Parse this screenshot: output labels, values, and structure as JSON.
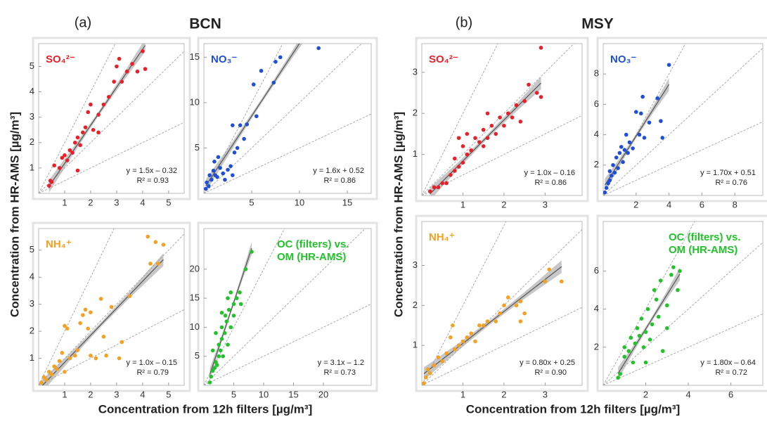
{
  "figure": {
    "groups": [
      {
        "label": "(a)",
        "title": "BCN",
        "y_label": "Concentration from HR-AMS [µg/m³]",
        "x_label": "Concentration  from 12h filters [µg/m³]"
      },
      {
        "label": "(b)",
        "title": "MSY",
        "y_label": "Concentration from HR-AMS [µg/m³]",
        "x_label": "Concentration  from 12h filters [µg/m³]"
      }
    ]
  },
  "chart_data": [
    {
      "type": "scatter",
      "legend": "upper left",
      "xlim": [
        0,
        5.6
      ],
      "ylim": [
        0,
        5.9
      ],
      "xticks": [
        1,
        2,
        3,
        4,
        5
      ],
      "yticks": [
        1,
        2,
        3,
        4,
        5
      ],
      "x": [
        0.4,
        0.45,
        0.5,
        0.6,
        0.8,
        0.9,
        1.0,
        1.1,
        1.2,
        1.3,
        1.4,
        1.5,
        1.6,
        1.7,
        1.8,
        1.9,
        2.0,
        2.1,
        2.3,
        2.5,
        2.7,
        2.9,
        3.0,
        3.1,
        3.2,
        3.4,
        3.6,
        3.8,
        4.0,
        4.1,
        1.5,
        2.3
      ],
      "series": [
        {
          "name": "SO₄²⁻",
          "color": "#e8202a",
          "values": [
            0.3,
            0.5,
            0.45,
            1.1,
            1.0,
            1.4,
            1.5,
            1.3,
            1.7,
            1.6,
            2.0,
            2.2,
            1.9,
            2.4,
            2.6,
            3.2,
            3.5,
            2.5,
            3.1,
            3.5,
            3.8,
            4.4,
            5.0,
            5.3,
            4.4,
            4.8,
            5.1,
            4.8,
            5.6,
            4.9,
            0.9,
            2.4
          ]
        }
      ],
      "fit": {
        "slope": 1.5,
        "intercept": -0.32
      },
      "equation": "y = 1.5x – 0.32",
      "r2": "R² = 0.93"
    },
    {
      "type": "scatter",
      "legend": "upper left",
      "xlim": [
        0,
        17.5
      ],
      "ylim": [
        0,
        16.5
      ],
      "xticks": [
        5,
        10,
        15
      ],
      "yticks": [
        5,
        10,
        15
      ],
      "x": [
        0.2,
        0.3,
        0.5,
        0.6,
        0.8,
        1.0,
        1.1,
        1.2,
        1.4,
        1.5,
        1.7,
        2.0,
        2.2,
        2.5,
        2.8,
        3.0,
        3.2,
        3.5,
        3.0,
        3.8,
        4.2,
        4.5,
        5.5,
        5.2,
        6.0,
        7.5,
        7.3,
        8.0,
        12
      ],
      "series": [
        {
          "name": "NO₃⁻",
          "color": "#1f4fd6",
          "values": [
            0.5,
            1.2,
            0.8,
            2.0,
            1.5,
            2.5,
            3.5,
            2.0,
            1.8,
            4.0,
            2.8,
            2.2,
            1.5,
            2.6,
            3.0,
            2.0,
            4.5,
            5.0,
            7.5,
            7.5,
            6.0,
            7.6,
            8.5,
            12.0,
            13.5,
            14.5,
            12.2,
            15.0,
            16.0
          ]
        }
      ],
      "fit": {
        "slope": 1.6,
        "intercept": 0.52
      },
      "equation": "y = 1.6x + 0.52",
      "r2": "R² = 0.86"
    },
    {
      "type": "scatter",
      "legend": "upper left",
      "xlim": [
        0,
        5.6
      ],
      "ylim": [
        0,
        5.8
      ],
      "xticks": [
        1,
        2,
        3,
        4,
        5
      ],
      "yticks": [
        1,
        2,
        3,
        4,
        5
      ],
      "x": [
        0.1,
        0.2,
        0.3,
        0.4,
        0.5,
        0.6,
        0.7,
        0.8,
        0.9,
        1.0,
        1.1,
        1.0,
        1.2,
        1.4,
        1.5,
        1.6,
        1.7,
        1.8,
        1.9,
        2.0,
        2.0,
        2.2,
        2.4,
        2.5,
        2.6,
        2.8,
        3.1,
        3.2,
        3.5,
        4.2,
        4.3,
        4.5,
        4.6,
        4.8
      ],
      "series": [
        {
          "name": "NH₄⁺",
          "color": "#f4a020",
          "values": [
            0.1,
            0.3,
            0.2,
            0.5,
            0.4,
            0.7,
            0.6,
            0.9,
            1.2,
            2.2,
            2.1,
            0.5,
            1.0,
            1.1,
            1.3,
            2.3,
            2.6,
            2.8,
            2.1,
            2.7,
            1.1,
            1.0,
            3.2,
            1.8,
            1.1,
            2.9,
            1.0,
            1.6,
            3.3,
            5.5,
            4.5,
            5.3,
            4.5,
            5.2
          ]
        }
      ],
      "fit": {
        "slope": 1.0,
        "intercept": -0.15
      },
      "equation": "y = 1.0x – 0.15",
      "r2": "R² = 0.79"
    },
    {
      "type": "scatter",
      "legend": "upper right",
      "xlim": [
        0,
        28
      ],
      "ylim": [
        0,
        27
      ],
      "xticks": [
        5,
        10,
        15,
        20
      ],
      "yticks": [
        5,
        10,
        15,
        20
      ],
      "x": [
        1,
        1.2,
        1.5,
        1.8,
        2,
        2.2,
        2.5,
        2.5,
        2.8,
        3,
        3,
        3.2,
        3.5,
        3.6,
        3.8,
        4,
        4,
        4.2,
        4.5,
        4.5,
        5,
        5,
        5.5,
        6,
        6.2,
        1.5,
        2,
        7,
        8,
        3
      ],
      "series": [
        {
          "name": "OC (filters) vs. OM (HR-AMS)",
          "color": "#22c22a",
          "values": [
            0.5,
            1.5,
            2.5,
            3,
            4,
            3.5,
            5,
            7,
            6,
            8,
            10,
            5,
            9,
            12,
            11,
            7,
            15,
            13,
            10,
            16,
            12,
            14,
            15,
            16,
            14,
            6,
            9,
            20,
            23,
            12.5
          ]
        }
      ],
      "fit": {
        "slope": 3.1,
        "intercept": -1.2
      },
      "equation": "y = 3.1x – 1.2",
      "r2": "R² = 0.73"
    },
    {
      "type": "scatter",
      "legend": "upper left",
      "xlim": [
        0,
        3.9
      ],
      "ylim": [
        0,
        3.7
      ],
      "xticks": [
        1,
        2,
        3
      ],
      "yticks": [
        1,
        2,
        3
      ],
      "x": [
        0.2,
        0.3,
        0.4,
        0.5,
        0.6,
        0.7,
        0.8,
        0.8,
        0.9,
        0.9,
        1.0,
        1.0,
        1.1,
        1.2,
        1.3,
        1.4,
        1.5,
        1.5,
        1.6,
        1.7,
        1.8,
        1.9,
        2.0,
        2.1,
        2.2,
        2.3,
        2.4,
        2.5,
        2.6,
        2.8,
        2.9,
        2.9,
        1.1,
        1.6
      ],
      "series": [
        {
          "name": "SO₄²⁻",
          "color": "#e8202a",
          "values": [
            0.1,
            0.2,
            0.2,
            0.3,
            0.3,
            0.5,
            0.6,
            0.9,
            0.7,
            1.4,
            0.8,
            1.2,
            1.0,
            1.1,
            1.4,
            1.3,
            1.2,
            1.6,
            1.4,
            1.7,
            1.5,
            1.9,
            1.7,
            2.0,
            1.9,
            2.2,
            1.8,
            2.3,
            2.7,
            2.5,
            2.4,
            3.6,
            1.5,
            2.0
          ]
        }
      ],
      "fit": {
        "slope": 1.0,
        "intercept": -0.16
      },
      "equation": "y = 1.0x – 0.16",
      "r2": "R² = 0.86"
    },
    {
      "type": "scatter",
      "legend": "upper left",
      "xlim": [
        0,
        9.7
      ],
      "ylim": [
        0,
        10
      ],
      "xticks": [
        2,
        4,
        6,
        8
      ],
      "yticks": [
        2,
        4,
        6,
        8
      ],
      "x": [
        0.1,
        0.2,
        0.3,
        0.4,
        0.5,
        0.6,
        0.7,
        0.8,
        0.9,
        1.0,
        1.1,
        1.2,
        1.3,
        1.5,
        1.6,
        1.8,
        2.0,
        2.2,
        2.3,
        2.4,
        2.5,
        2.8,
        3.3,
        3.5,
        3.6,
        4.0,
        0.4,
        1.4
      ],
      "series": [
        {
          "name": "NO₃⁻",
          "color": "#1f4fd6",
          "values": [
            0.2,
            0.5,
            0.8,
            1.0,
            1.3,
            2.0,
            1.5,
            2.5,
            1.8,
            2.8,
            3.2,
            2.2,
            3.0,
            2.8,
            3.5,
            3.1,
            5.5,
            4.0,
            5.4,
            6.5,
            3.8,
            4.8,
            6.4,
            4.9,
            3.8,
            8.6,
            1.6,
            4.0
          ]
        }
      ],
      "fit": {
        "slope": 1.7,
        "intercept": 0.51
      },
      "equation": "y = 1.70x + 0.51",
      "r2": "R² = 0.76"
    },
    {
      "type": "scatter",
      "legend": "upper left",
      "xlim": [
        0,
        3.9
      ],
      "ylim": [
        0,
        4.1
      ],
      "xticks": [
        1,
        2,
        3
      ],
      "yticks": [
        1,
        2,
        3
      ],
      "x": [
        0.05,
        0.1,
        0.15,
        0.2,
        0.3,
        0.4,
        0.5,
        0.6,
        0.7,
        0.75,
        0.8,
        0.9,
        1.0,
        1.1,
        1.2,
        1.3,
        1.4,
        1.5,
        1.6,
        1.8,
        1.9,
        2.0,
        2.1,
        2.3,
        2.4,
        2.5,
        2.4,
        3.0,
        3.1,
        3.4
      ],
      "series": [
        {
          "name": "NH₄⁺",
          "color": "#f4a020",
          "values": [
            0.05,
            0.2,
            0.4,
            0.3,
            0.5,
            0.7,
            0.6,
            0.8,
            1.2,
            1.5,
            0.9,
            1.0,
            1.1,
            1.2,
            1.3,
            1.1,
            1.5,
            1.5,
            1.6,
            1.6,
            1.8,
            2.0,
            2.2,
            2.0,
            2.1,
            1.8,
            1.6,
            2.6,
            2.9,
            2.6
          ]
        }
      ],
      "fit": {
        "slope": 0.8,
        "intercept": 0.25
      },
      "equation": "y = 0.80x + 0.25",
      "r2": "R² = 0.90"
    },
    {
      "type": "scatter",
      "legend": "upper right",
      "xlim": [
        0,
        7.5
      ],
      "ylim": [
        0,
        8.6
      ],
      "xticks": [
        2,
        4,
        6
      ],
      "yticks": [
        2,
        4,
        6
      ],
      "x": [
        0.7,
        0.8,
        1.0,
        1.0,
        1.2,
        1.3,
        1.4,
        1.5,
        1.6,
        1.7,
        1.8,
        1.9,
        2.0,
        2.1,
        2.2,
        2.3,
        2.4,
        2.5,
        2.6,
        2.7,
        2.8,
        3.0,
        3.2,
        3.3,
        3.5,
        3.6,
        2.0,
        3.0
      ],
      "series": [
        {
          "name": "OC (filters) vs. OM (HR-AMS)",
          "color": "#22c22a",
          "values": [
            0.4,
            0.6,
            1.5,
            2.0,
            1.8,
            2.5,
            1.2,
            2.2,
            3.0,
            2.6,
            3.5,
            2.0,
            2.8,
            4.0,
            2.4,
            3.2,
            5.0,
            4.5,
            3.6,
            5.5,
            1.8,
            4.2,
            5.8,
            6.2,
            5.0,
            6.0,
            1.2,
            3.0
          ]
        }
      ],
      "fit": {
        "slope": 1.8,
        "intercept": -0.64
      },
      "equation": "y = 1.80x – 0.64",
      "r2": "R² = 0.72"
    }
  ]
}
